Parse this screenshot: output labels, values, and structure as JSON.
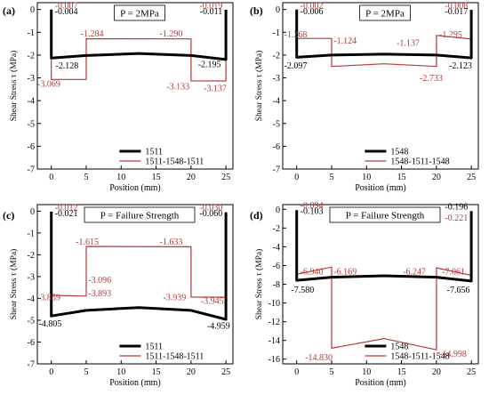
{
  "chart_data": [
    {
      "type": "line",
      "panel_label": "(a)",
      "title": "P = 2MPa",
      "xlabel": "Position (mm)",
      "ylabel": "Shear Stress τ (MPa)",
      "xlim": [
        -2,
        26
      ],
      "ylim": [
        -7,
        0.3
      ],
      "xticks": [
        0,
        5,
        10,
        15,
        20,
        25
      ],
      "yticks": [
        0,
        -1,
        -2,
        -3,
        -4,
        -5,
        -6,
        -7
      ],
      "legend_position": "bottom-center",
      "series": [
        {
          "name": "1511",
          "color": "#000000",
          "x": [
            0,
            0,
            5,
            12.5,
            20,
            25,
            25
          ],
          "y": [
            -0.004,
            -2.128,
            -2.02,
            -1.93,
            -2.02,
            -2.195,
            -0.011
          ]
        },
        {
          "name": "1511-1548-1511",
          "color": "#b33a3a",
          "x": [
            0,
            0,
            5,
            5,
            20,
            20,
            25,
            25
          ],
          "y": [
            -0.007,
            -3.069,
            -3.069,
            -1.284,
            -1.29,
            -3.133,
            -3.137,
            -0.019
          ]
        }
      ],
      "annotations": [
        {
          "text": "-0.007",
          "color": "#b33a3a"
        },
        {
          "text": "-0.004",
          "color": "#000000"
        },
        {
          "text": "-2.128",
          "color": "#000000"
        },
        {
          "text": "-3.069",
          "color": "#b33a3a"
        },
        {
          "text": "-1.284",
          "color": "#b33a3a"
        },
        {
          "text": "-1.290",
          "color": "#b33a3a"
        },
        {
          "text": "-3.133",
          "color": "#b33a3a"
        },
        {
          "text": "-2.195",
          "color": "#000000"
        },
        {
          "text": "-3.137",
          "color": "#b33a3a"
        },
        {
          "text": "-0.019",
          "color": "#b33a3a"
        },
        {
          "text": "-0.011",
          "color": "#000000"
        }
      ]
    },
    {
      "type": "line",
      "panel_label": "(b)",
      "title": "P = 2MPa",
      "xlabel": "Position (mm)",
      "ylabel": "Shear Stress τ (MPa)",
      "xlim": [
        -2,
        26
      ],
      "ylim": [
        -7,
        0.3
      ],
      "xticks": [
        0,
        5,
        10,
        15,
        20,
        25
      ],
      "yticks": [
        0,
        -1,
        -2,
        -3,
        -4,
        -5,
        -6,
        -7
      ],
      "legend_position": "bottom-center",
      "series": [
        {
          "name": "1548",
          "color": "#000000",
          "x": [
            0,
            0,
            5,
            12.5,
            20,
            25,
            25
          ],
          "y": [
            -0.006,
            -2.097,
            -2.0,
            -1.96,
            -2.0,
            -2.123,
            -0.017
          ]
        },
        {
          "name": "1548-1511-1548",
          "color": "#b33a3a",
          "x": [
            0,
            0,
            5,
            5,
            12.5,
            20,
            20,
            25,
            25
          ],
          "y": [
            -0.002,
            -1.268,
            -1.268,
            -2.5,
            -2.38,
            -2.5,
            -1.137,
            -1.295,
            -0.008
          ]
        }
      ],
      "annotations": [
        {
          "text": "-0.002",
          "color": "#b33a3a"
        },
        {
          "text": "-0.006",
          "color": "#000000"
        },
        {
          "text": "-1.268",
          "color": "#b33a3a"
        },
        {
          "text": "-1.124",
          "color": "#b33a3a"
        },
        {
          "text": "-2.097",
          "color": "#000000"
        },
        {
          "text": "-1.137",
          "color": "#b33a3a"
        },
        {
          "text": "-1.295",
          "color": "#b33a3a"
        },
        {
          "text": "-2.733",
          "color": "#b33a3a"
        },
        {
          "text": "-2.123",
          "color": "#000000"
        },
        {
          "text": "-0.008",
          "color": "#b33a3a"
        },
        {
          "text": "-0.017",
          "color": "#000000"
        }
      ]
    },
    {
      "type": "line",
      "panel_label": "(c)",
      "title": "P = Failure Strength",
      "xlabel": "Position (mm)",
      "ylabel": "Shear Stress τ (MPa)",
      "xlim": [
        -2,
        26
      ],
      "ylim": [
        -7,
        0.3
      ],
      "xticks": [
        0,
        5,
        10,
        15,
        20,
        25
      ],
      "yticks": [
        0,
        -1,
        -2,
        -3,
        -4,
        -5,
        -6,
        -7
      ],
      "legend_position": "bottom-center",
      "series": [
        {
          "name": "1511",
          "color": "#000000",
          "x": [
            0,
            0,
            5,
            12.5,
            20,
            25,
            25
          ],
          "y": [
            -0.021,
            -4.805,
            -4.55,
            -4.42,
            -4.55,
            -4.959,
            -0.06
          ]
        },
        {
          "name": "1511-1548-1511",
          "color": "#b33a3a",
          "x": [
            0,
            0,
            5,
            5,
            20,
            20,
            25,
            25
          ],
          "y": [
            -0.012,
            -3.859,
            -3.893,
            -1.615,
            -1.633,
            -3.939,
            -3.945,
            -0.03
          ]
        }
      ],
      "annotations": [
        {
          "text": "-0.012",
          "color": "#b33a3a"
        },
        {
          "text": "-0.021",
          "color": "#000000"
        },
        {
          "text": "-1.615",
          "color": "#b33a3a"
        },
        {
          "text": "-1.633",
          "color": "#b33a3a"
        },
        {
          "text": "-3.096",
          "color": "#b33a3a"
        },
        {
          "text": "-3.859",
          "color": "#b33a3a"
        },
        {
          "text": "-3.893",
          "color": "#b33a3a"
        },
        {
          "text": "-3.939",
          "color": "#b33a3a"
        },
        {
          "text": "-3.945",
          "color": "#b33a3a"
        },
        {
          "text": "-4.805",
          "color": "#000000"
        },
        {
          "text": "-4.959",
          "color": "#000000"
        },
        {
          "text": "-0.030",
          "color": "#b33a3a"
        },
        {
          "text": "-0.060",
          "color": "#000000"
        }
      ]
    },
    {
      "type": "line",
      "panel_label": "(d)",
      "title": "P = Failure Strength",
      "xlabel": "Position (mm)",
      "ylabel": "Shear Stress τ (MPa)",
      "xlim": [
        -2,
        26
      ],
      "ylim": [
        -16.5,
        0.5
      ],
      "xticks": [
        0,
        5,
        10,
        15,
        20,
        25
      ],
      "yticks": [
        0,
        -2,
        -4,
        -6,
        -8,
        -10,
        -12,
        -14,
        -16
      ],
      "legend_position": "bottom-center",
      "series": [
        {
          "name": "1548",
          "color": "#000000",
          "x": [
            0,
            0,
            5,
            12.5,
            20,
            25,
            25
          ],
          "y": [
            -0.103,
            -7.58,
            -7.25,
            -7.1,
            -7.25,
            -7.656,
            -0.196
          ]
        },
        {
          "name": "1548-1511-1548",
          "color": "#b33a3a",
          "x": [
            0,
            0,
            5,
            5,
            12.5,
            20,
            20,
            25,
            25
          ],
          "y": [
            -0.094,
            -6.94,
            -6.169,
            -14.83,
            -13.8,
            -14.998,
            -6.247,
            -7.061,
            -0.221
          ]
        }
      ],
      "annotations": [
        {
          "text": "-0.094",
          "color": "#b33a3a"
        },
        {
          "text": "-0.103",
          "color": "#000000"
        },
        {
          "text": "-6.940",
          "color": "#b33a3a"
        },
        {
          "text": "-6.169",
          "color": "#b33a3a"
        },
        {
          "text": "-7.580",
          "color": "#000000"
        },
        {
          "text": "-6.247",
          "color": "#b33a3a"
        },
        {
          "text": "-7.061",
          "color": "#b33a3a"
        },
        {
          "text": "-7.656",
          "color": "#000000"
        },
        {
          "text": "-14.830",
          "color": "#b33a3a"
        },
        {
          "text": "-14.998",
          "color": "#b33a3a"
        },
        {
          "text": "-0.196",
          "color": "#000000"
        },
        {
          "text": "-0.221",
          "color": "#b33a3a"
        }
      ]
    }
  ]
}
